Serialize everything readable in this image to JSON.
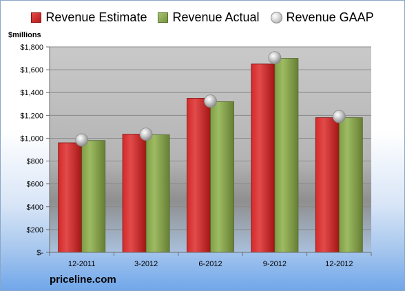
{
  "legend": {
    "estimate": "Revenue Estimate",
    "actual": "Revenue Actual",
    "gaap": "Revenue GAAP"
  },
  "unit_label": "$millions",
  "brand": "priceline.com",
  "colors": {
    "estimate": "#c81e1e",
    "actual": "#8aa84f",
    "gaap": "#c0c0c0"
  },
  "chart_data": {
    "type": "bar",
    "categories": [
      "12-2011",
      "3-2012",
      "6-2012",
      "9-2012",
      "12-2012"
    ],
    "series": [
      {
        "name": "Revenue Estimate",
        "values": [
          960,
          1035,
          1350,
          1650,
          1180
        ]
      },
      {
        "name": "Revenue Actual",
        "values": [
          980,
          1030,
          1320,
          1700,
          1180
        ]
      },
      {
        "name": "Revenue GAAP",
        "values": [
          985,
          1035,
          1325,
          1705,
          1190
        ],
        "marker": "circle"
      }
    ],
    "ylabel": "$millions",
    "ylim": [
      0,
      1800
    ],
    "yticks": [
      0,
      200,
      400,
      600,
      800,
      1000,
      1200,
      1400,
      1600,
      1800
    ],
    "ytick_labels": [
      "$-",
      "$200",
      "$400",
      "$600",
      "$800",
      "$1,000",
      "$1,200",
      "$1,400",
      "$1,600",
      "$1,800"
    ],
    "grid": true,
    "legend_position": "top"
  }
}
